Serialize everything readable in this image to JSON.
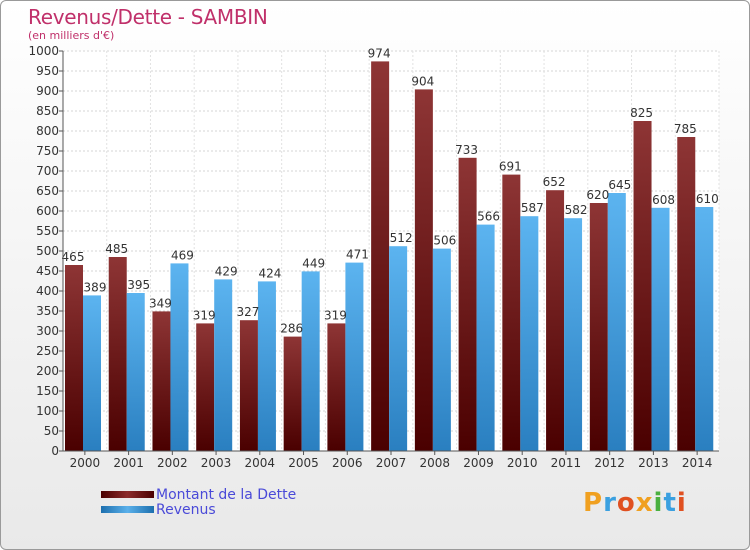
{
  "header": {
    "title": "Revenus/Dette - SAMBIN",
    "subtitle": "(en milliers d'€)"
  },
  "legend": {
    "debt_label": "Montant de la Dette",
    "revenue_label": "Revenus"
  },
  "logo": {
    "text": "Proxiti"
  },
  "colors": {
    "debt": "#7f2424",
    "revenue": "#4ea8e6",
    "title": "#c0306a",
    "legend_text": "#4a4ad8"
  },
  "chart_data": {
    "type": "bar",
    "title": "Revenus/Dette - SAMBIN",
    "subtitle": "(en milliers d'€)",
    "categories": [
      "2000",
      "2001",
      "2002",
      "2003",
      "2004",
      "2005",
      "2006",
      "2007",
      "2008",
      "2009",
      "2010",
      "2011",
      "2012",
      "2013",
      "2014"
    ],
    "series": [
      {
        "name": "Montant de la Dette",
        "values": [
          465,
          485,
          349,
          319,
          327,
          286,
          319,
          974,
          904,
          733,
          691,
          652,
          620,
          825,
          785
        ]
      },
      {
        "name": "Revenus",
        "values": [
          389,
          395,
          469,
          429,
          424,
          449,
          471,
          512,
          506,
          566,
          587,
          582,
          645,
          608,
          610
        ]
      }
    ],
    "ylim": [
      0,
      1000
    ],
    "yticks": [
      0,
      50,
      100,
      150,
      200,
      250,
      300,
      350,
      400,
      450,
      500,
      550,
      600,
      650,
      700,
      750,
      800,
      850,
      900,
      950,
      1000
    ],
    "grid": true,
    "legend_position": "bottom-left"
  }
}
